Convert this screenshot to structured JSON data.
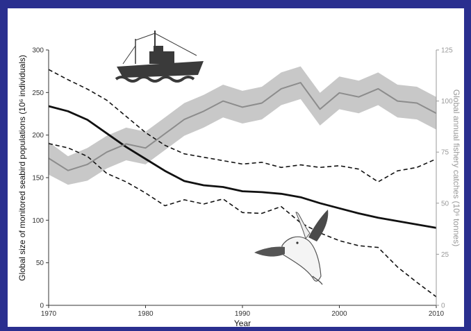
{
  "chart_data": {
    "type": "line",
    "title": "",
    "xlabel": "Year",
    "ylabel": "Global size of monitored seabird populations (10⁶ individuals)",
    "ylabel_right": "Global annual fishery catches (10⁶ tonnes)",
    "xlim": [
      1970,
      2010
    ],
    "ylim": [
      0,
      300
    ],
    "ylim_right": [
      0,
      125
    ],
    "x_ticks": [
      "1970",
      "1980",
      "1990",
      "2000",
      "2010"
    ],
    "y_ticks": [
      "0",
      "50",
      "100",
      "150",
      "200",
      "250",
      "300"
    ],
    "y_ticks_right": [
      "0",
      "25",
      "50",
      "75",
      "100",
      "125"
    ],
    "grid": false,
    "series": [
      {
        "role": "seabird population estimate",
        "color": "#111111",
        "x": [
          1970,
          1972,
          1974,
          1976,
          1978,
          1980,
          1982,
          1984,
          1986,
          1988,
          1990,
          1992,
          1994,
          1996,
          1998,
          2000,
          2002,
          2004,
          2006,
          2008,
          2010
        ],
        "y": [
          234,
          228,
          218,
          202,
          186,
          172,
          158,
          146,
          141,
          139,
          134,
          133,
          131,
          127,
          120,
          114,
          108,
          103,
          99,
          95,
          91
        ]
      },
      {
        "role": "seabird population upper bound",
        "color": "#111111",
        "dashed": true,
        "x": [
          1970,
          1972,
          1974,
          1976,
          1978,
          1980,
          1982,
          1984,
          1986,
          1988,
          1990,
          1992,
          1994,
          1996,
          1998,
          2000,
          2002,
          2004,
          2006,
          2008,
          2010
        ],
        "y": [
          277,
          265,
          254,
          241,
          222,
          203,
          188,
          178,
          174,
          170,
          166,
          168,
          162,
          165,
          162,
          164,
          160,
          145,
          158,
          162,
          172
        ]
      },
      {
        "role": "seabird population lower bound",
        "color": "#111111",
        "dashed": true,
        "x": [
          1970,
          1972,
          1974,
          1976,
          1978,
          1980,
          1982,
          1984,
          1986,
          1988,
          1990,
          1992,
          1994,
          1996,
          1998,
          2000,
          2002,
          2004,
          2006,
          2008,
          2010
        ],
        "y": [
          190,
          185,
          175,
          155,
          145,
          132,
          117,
          124,
          119,
          125,
          109,
          108,
          116,
          97,
          85,
          76,
          70,
          68,
          45,
          27,
          10
        ]
      },
      {
        "role": "fishery catches (right axis)",
        "axis": "right",
        "color": "#8c8c8c",
        "band_color": "#c8c8c8",
        "x": [
          1970,
          1972,
          1974,
          1976,
          1978,
          1980,
          1982,
          1984,
          1986,
          1988,
          1990,
          1992,
          1994,
          1996,
          1998,
          2000,
          2002,
          2004,
          2006,
          2008,
          2010
        ],
        "y": [
          72,
          66,
          69,
          75,
          79,
          77,
          84,
          91,
          95,
          100,
          97,
          99,
          106,
          109,
          96,
          104,
          102,
          106,
          100,
          99,
          94
        ],
        "band_lower": [
          64,
          59,
          61,
          67,
          71,
          69,
          76,
          83,
          87,
          92,
          89,
          91,
          98,
          101,
          88,
          96,
          94,
          98,
          92,
          91,
          86
        ],
        "band_upper": [
          80,
          73,
          77,
          83,
          87,
          85,
          92,
          99,
          103,
          108,
          105,
          107,
          114,
          117,
          104,
          112,
          110,
          114,
          108,
          107,
          102
        ]
      }
    ],
    "annotations": [
      "fishing-boat-silhouette",
      "seabird-gannet-drawing"
    ]
  }
}
